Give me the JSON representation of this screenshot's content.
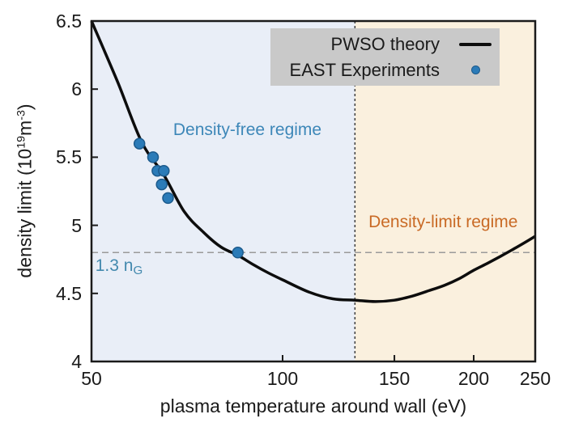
{
  "chart_data": {
    "type": "line",
    "title": "",
    "xlabel": "plasma temperature around wall (eV)",
    "ylabel": "density limit (10¹⁹m⁻³)",
    "xscale": "log",
    "yscale": "linear",
    "xlim": [
      50,
      250
    ],
    "ylim": [
      4,
      6.5
    ],
    "x_ticks": [
      50,
      100,
      150,
      200,
      250
    ],
    "y_ticks": [
      4,
      4.5,
      5,
      5.5,
      6,
      6.5
    ],
    "grid": false,
    "legend_position": "top-right",
    "series": [
      {
        "name": "PWSO theory",
        "kind": "line",
        "color": "#0d0d0d",
        "line_width": 3.5,
        "x": [
          50,
          55,
          60,
          65,
          70,
          75,
          80,
          85,
          90,
          95,
          100,
          110,
          120,
          130,
          140,
          150,
          160,
          170,
          180,
          190,
          200,
          210,
          220,
          230,
          240,
          250
        ],
        "y": [
          6.5,
          6.05,
          5.61,
          5.37,
          5.1,
          4.95,
          4.84,
          4.78,
          4.71,
          4.65,
          4.6,
          4.51,
          4.46,
          4.45,
          4.44,
          4.45,
          4.48,
          4.52,
          4.56,
          4.61,
          4.67,
          4.72,
          4.77,
          4.82,
          4.87,
          4.92
        ]
      },
      {
        "name": "EAST Experiments",
        "kind": "scatter",
        "color": "#2b7bb8",
        "edge_color": "#1c5a8c",
        "radius": 6.5,
        "points": [
          [
            59.5,
            5.6
          ],
          [
            62.5,
            5.5
          ],
          [
            63.5,
            5.4
          ],
          [
            65,
            5.4
          ],
          [
            64.5,
            5.3
          ],
          [
            66,
            5.2
          ],
          [
            85,
            4.8
          ]
        ]
      }
    ],
    "regions": [
      {
        "label": "Density-free regime",
        "x_from": 50,
        "x_to": 130,
        "fill": "#e9eef7",
        "label_color": "#3d87b8",
        "label_x": 88,
        "label_y": 5.7
      },
      {
        "label": "Density-limit regime",
        "x_from": 130,
        "x_to": 250,
        "fill": "#faf0de",
        "label_color": "#c96a25",
        "label_x": 179,
        "label_y": 5.02
      }
    ],
    "reference_lines": [
      {
        "orientation": "vertical",
        "value": 130,
        "color": "#3c3c3c",
        "dash": "3,3",
        "width": 1.5
      },
      {
        "orientation": "horizontal",
        "value": 4.8,
        "color": "#9a9a9a",
        "dash": "8,5",
        "width": 1.5
      }
    ],
    "annotation_ng": {
      "text": "1.3 n",
      "sub": "G",
      "x": 50.7,
      "y": 4.7,
      "color": "#4389ae"
    },
    "frame_color": "#1a1a1a"
  },
  "legend": {
    "background": "#c9c9c9",
    "entries": [
      {
        "label": "PWSO theory",
        "marker": "line",
        "color": "#0d0d0d"
      },
      {
        "label": "EAST Experiments",
        "marker": "dot",
        "color": "#2b7bb8",
        "edge_color": "#1c5a8c"
      }
    ]
  },
  "axes": {
    "ylabel_parts": [
      {
        "t": "density limit (10"
      },
      {
        "t": "19",
        "sup": true
      },
      {
        "t": "m"
      },
      {
        "t": "-3",
        "sup": true
      },
      {
        "t": ")"
      }
    ]
  }
}
